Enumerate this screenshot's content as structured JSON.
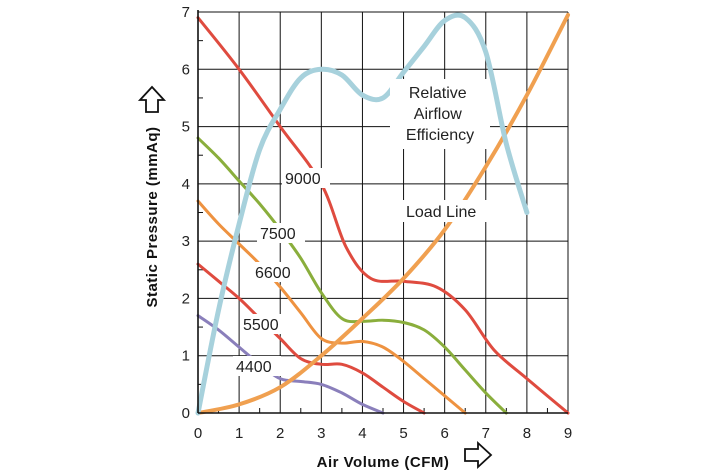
{
  "chart_data": {
    "type": "line",
    "xlabel": "Air Volume (CFM)",
    "ylabel": "Static Pressure (mmAq)",
    "xlim": [
      0,
      9
    ],
    "ylim": [
      0,
      7
    ],
    "xticks": [
      "0",
      "1",
      "2",
      "3",
      "4",
      "5",
      "6",
      "7",
      "8",
      "9"
    ],
    "yticks": [
      "0",
      "1",
      "2",
      "3",
      "4",
      "5",
      "6",
      "7"
    ],
    "grid": true,
    "series": [
      {
        "name": "9000",
        "color": "#df4b3f",
        "x": [
          0,
          1,
          2,
          3,
          3.6,
          4.2,
          5.0,
          5.8,
          6.5,
          7.2,
          8.0,
          9.0
        ],
        "y": [
          6.9,
          6.0,
          5.0,
          4.0,
          2.9,
          2.35,
          2.3,
          2.2,
          1.8,
          1.1,
          0.6,
          0
        ]
      },
      {
        "name": "7500",
        "color": "#8aae3c",
        "x": [
          0,
          0.5,
          1.0,
          1.5,
          2.0,
          2.5,
          3.0,
          3.5,
          4.0,
          4.5,
          5.0,
          5.5,
          6.0,
          6.5,
          7.0,
          7.5
        ],
        "y": [
          4.8,
          4.45,
          4.05,
          3.65,
          3.2,
          2.7,
          2.1,
          1.65,
          1.6,
          1.62,
          1.58,
          1.45,
          1.15,
          0.75,
          0.35,
          0
        ]
      },
      {
        "name": "6600",
        "color": "#ee9240",
        "x": [
          0,
          0.5,
          1.0,
          1.5,
          2.0,
          2.5,
          3.0,
          3.5,
          4.0,
          4.5,
          5.0,
          5.5,
          6.0,
          6.5
        ],
        "y": [
          3.7,
          3.3,
          2.95,
          2.6,
          2.2,
          1.75,
          1.3,
          1.22,
          1.25,
          1.15,
          0.9,
          0.6,
          0.3,
          0
        ]
      },
      {
        "name": "5500",
        "color": "#df4b3f",
        "x": [
          0,
          0.5,
          1.0,
          1.5,
          2.0,
          2.5,
          3.0,
          3.5,
          4.0,
          4.5,
          5.0,
          5.5
        ],
        "y": [
          2.6,
          2.3,
          2.0,
          1.65,
          1.3,
          0.95,
          0.85,
          0.85,
          0.7,
          0.45,
          0.2,
          0
        ]
      },
      {
        "name": "4400",
        "color": "#8a7fbb",
        "x": [
          0,
          0.5,
          1.0,
          1.5,
          2.0,
          2.5,
          3.0,
          3.5,
          4.0,
          4.5
        ],
        "y": [
          1.7,
          1.45,
          1.15,
          0.85,
          0.6,
          0.55,
          0.5,
          0.35,
          0.15,
          0
        ]
      },
      {
        "name": "Relative Airflow Efficiency",
        "color": "#a7d1dc",
        "x": [
          0,
          0.5,
          1.0,
          1.5,
          2.0,
          2.5,
          3.0,
          3.5,
          4.0,
          4.5,
          5.0,
          5.5,
          6.0,
          6.5,
          7.0,
          7.5,
          8.0
        ],
        "y": [
          0,
          1.8,
          3.3,
          4.6,
          5.3,
          5.85,
          6.0,
          5.9,
          5.55,
          5.5,
          5.95,
          6.4,
          6.85,
          6.9,
          6.3,
          4.7,
          3.5
        ]
      },
      {
        "name": "Load Line",
        "color": "#f0a050",
        "x": [
          0,
          1,
          2,
          3,
          4,
          5,
          6,
          7,
          8,
          9
        ],
        "y": [
          0,
          0.15,
          0.45,
          1.0,
          1.65,
          2.35,
          3.2,
          4.3,
          5.55,
          6.95
        ]
      }
    ]
  }
}
